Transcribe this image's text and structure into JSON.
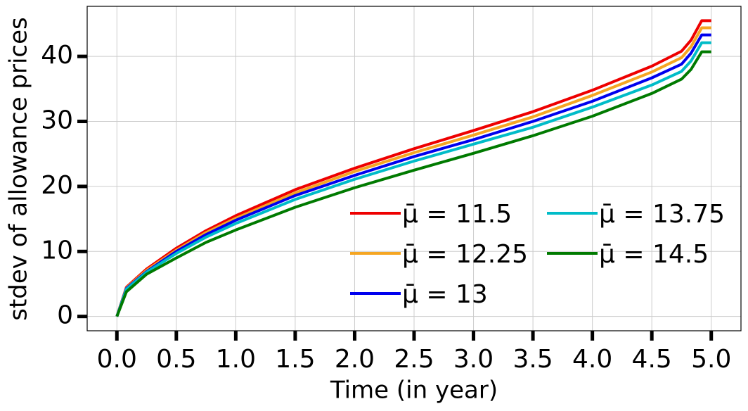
{
  "chart_data": {
    "type": "line",
    "xlabel": "Time (in year)",
    "ylabel": "stdev of allowance prices",
    "x": [
      0,
      0.08,
      0.25,
      0.5,
      0.75,
      1,
      1.5,
      2,
      2.5,
      3,
      3.5,
      4,
      4.5,
      4.75,
      4.83,
      4.92,
      5
    ],
    "series": [
      {
        "name": "μ̄ = 11.5",
        "color": "#ee0000",
        "values": [
          0,
          4.5,
          7.3,
          10.5,
          13.2,
          15.5,
          19.5,
          22.8,
          25.8,
          28.6,
          31.5,
          34.8,
          38.5,
          40.8,
          42.5,
          45.5,
          45.5
        ]
      },
      {
        "name": "μ̄ = 12.25",
        "color": "#f5a623",
        "values": [
          0,
          4.4,
          7.1,
          10.2,
          12.9,
          15.1,
          19.0,
          22.3,
          25.2,
          27.9,
          30.7,
          34.0,
          37.6,
          39.8,
          41.5,
          44.4,
          44.4
        ]
      },
      {
        "name": "μ̄ = 13",
        "color": "#0000ee",
        "values": [
          0,
          4.3,
          6.9,
          10.0,
          12.6,
          14.8,
          18.6,
          21.7,
          24.6,
          27.2,
          30.0,
          33.1,
          36.7,
          38.8,
          40.5,
          43.3,
          43.3
        ]
      },
      {
        "name": "μ̄ = 13.75",
        "color": "#00bcc8",
        "values": [
          0,
          4.2,
          6.8,
          9.7,
          12.2,
          14.3,
          18.0,
          21.1,
          23.9,
          26.5,
          29.1,
          32.2,
          35.6,
          37.7,
          39.3,
          42.1,
          42.1
        ]
      },
      {
        "name": "μ̄ = 14.5",
        "color": "#007a00",
        "values": [
          0,
          3.8,
          6.5,
          9.0,
          11.4,
          13.3,
          16.8,
          19.8,
          22.5,
          25.1,
          27.8,
          30.8,
          34.3,
          36.5,
          38.0,
          40.7,
          40.7
        ]
      }
    ],
    "xlim": [
      -0.25,
      5.25
    ],
    "ylim": [
      -2.2,
      47.7
    ],
    "xticks": [
      {
        "value": 0,
        "label": "0.0"
      },
      0.5,
      {
        "value": 1,
        "label": "1.0"
      },
      1.5,
      {
        "value": 2,
        "label": "2.0"
      },
      2.5,
      {
        "value": 3,
        "label": "3.0"
      },
      3.5,
      {
        "value": 4,
        "label": "4.0"
      },
      4.5,
      {
        "value": 5,
        "label": "5.0"
      }
    ],
    "yticks": [
      0,
      10,
      20,
      30,
      40
    ],
    "grid": true,
    "legend_loc": "lower right",
    "legend_ncol": 2
  }
}
